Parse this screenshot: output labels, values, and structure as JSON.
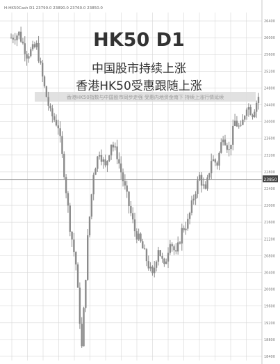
{
  "header": {
    "info": "H-HK50Cash  D1  23790.0 23890.0 23760.0 23850.0"
  },
  "chart_data": {
    "type": "candlestick",
    "symbol": "HK50 D1",
    "title": "HK50 D1",
    "subtitle_1": "中国股市持续上涨",
    "subtitle_2": "香港HK50受惠跟随上涨",
    "band_text": "香港HK50指数与中国股市同步走强 受惠内地资金南下 持续上涨行情延续",
    "grid": true,
    "reference_level": 23850,
    "current_price_label": "23850",
    "ylim": [
      18300,
      26600
    ],
    "y_ticks": [
      "26400",
      "26000",
      "25600",
      "25200",
      "24800",
      "24400",
      "24000",
      "23600",
      "23200",
      "22800",
      "22400",
      "22000",
      "21600",
      "21200",
      "20800",
      "20400",
      "20000",
      "19600",
      "19200",
      "18800",
      "18400"
    ],
    "colors": {
      "bars": "#8a8a8a",
      "grid": "#d7d7d7",
      "reference_line": "#9a9a9a",
      "band": "#d9d9d9",
      "text": "#333333"
    },
    "close_path": [
      [
        0,
        26000
      ],
      [
        4,
        26100
      ],
      [
        8,
        25600
      ],
      [
        13,
        25800
      ],
      [
        17,
        24800
      ],
      [
        20,
        24200
      ],
      [
        24,
        23900
      ],
      [
        27,
        22800
      ],
      [
        30,
        21500
      ],
      [
        33,
        20600
      ],
      [
        36,
        18600
      ],
      [
        39,
        21200
      ],
      [
        42,
        22800
      ],
      [
        45,
        23300
      ],
      [
        48,
        22900
      ],
      [
        51,
        23500
      ],
      [
        54,
        23200
      ],
      [
        57,
        22600
      ],
      [
        60,
        22000
      ],
      [
        63,
        21400
      ],
      [
        66,
        21100
      ],
      [
        69,
        20700
      ],
      [
        72,
        20300
      ],
      [
        75,
        21000
      ],
      [
        78,
        20500
      ],
      [
        81,
        21200
      ],
      [
        84,
        20800
      ],
      [
        87,
        21400
      ],
      [
        90,
        21600
      ],
      [
        93,
        22200
      ],
      [
        96,
        22700
      ],
      [
        99,
        22300
      ],
      [
        102,
        23100
      ],
      [
        105,
        23000
      ],
      [
        108,
        23700
      ],
      [
        111,
        23300
      ],
      [
        114,
        24000
      ],
      [
        117,
        23800
      ],
      [
        120,
        24400
      ],
      [
        123,
        24200
      ],
      [
        126,
        24600
      ]
    ]
  }
}
